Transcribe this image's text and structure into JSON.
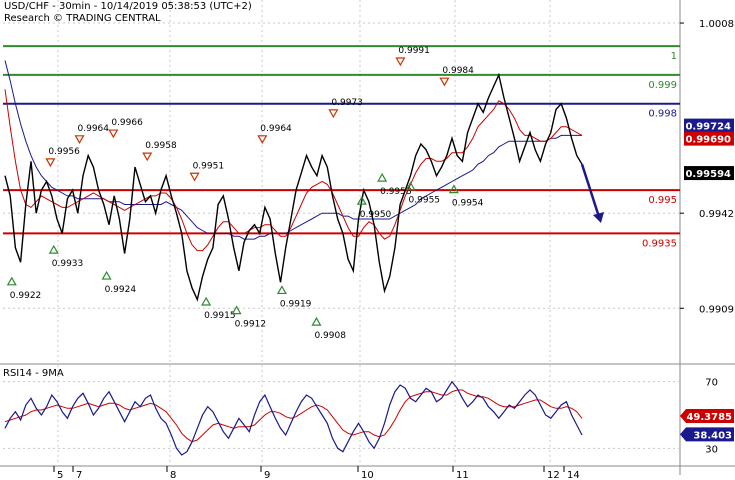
{
  "header": {
    "line1": "USD/CHF - 30min - 10/14/2019 05:38:53 (UTC+2)",
    "line2": "Research © TRADING CENTRAL"
  },
  "colors": {
    "background": "#ffffff",
    "price_line": "#000000",
    "ma_fast": "#cc0000",
    "ma_slow": "#1a1a8c",
    "level_green": "#2e8b2e",
    "level_blue": "#1a1a8c",
    "level_red": "#cc0000",
    "arrow": "#1a1a8c",
    "grid": "#c8c8c8",
    "up_marker": "#2e8b2e",
    "down_marker": "#cc3300"
  },
  "chart_data": [
    {
      "type": "line",
      "title": "USD/CHF - 30min",
      "x_tick_labels": [
        "5",
        "7",
        "8",
        "9",
        "10",
        "11",
        "12",
        "14"
      ],
      "y_tick_labels": [
        "1.0008",
        "0.9942",
        "0.9909"
      ],
      "ylim": [
        0.989,
        1.0016
      ],
      "grid": true,
      "price_path": [
        0.9955,
        0.9948,
        0.993,
        0.9925,
        0.9945,
        0.996,
        0.9942,
        0.995,
        0.9953,
        0.9948,
        0.994,
        0.9935,
        0.9947,
        0.995,
        0.9942,
        0.9955,
        0.9962,
        0.9958,
        0.995,
        0.9945,
        0.9938,
        0.9948,
        0.994,
        0.9928,
        0.994,
        0.9958,
        0.9952,
        0.9946,
        0.9948,
        0.9942,
        0.995,
        0.9955,
        0.9948,
        0.9942,
        0.9935,
        0.9922,
        0.9916,
        0.9912,
        0.992,
        0.9926,
        0.993,
        0.9945,
        0.9948,
        0.994,
        0.993,
        0.9922,
        0.9932,
        0.9936,
        0.9938,
        0.9935,
        0.9944,
        0.994,
        0.9928,
        0.9918,
        0.993,
        0.994,
        0.995,
        0.9956,
        0.9962,
        0.9958,
        0.9955,
        0.9962,
        0.9958,
        0.9948,
        0.994,
        0.9935,
        0.9926,
        0.9922,
        0.994,
        0.995,
        0.9946,
        0.9938,
        0.9925,
        0.9915,
        0.992,
        0.993,
        0.9945,
        0.995,
        0.9955,
        0.9962,
        0.9966,
        0.9964,
        0.996,
        0.9955,
        0.9958,
        0.9962,
        0.9968,
        0.9962,
        0.996,
        0.997,
        0.9975,
        0.998,
        0.9977,
        0.9982,
        0.9986,
        0.999,
        0.9982,
        0.9975,
        0.9968,
        0.996,
        0.9965,
        0.997,
        0.9964,
        0.996,
        0.9966,
        0.997,
        0.9978,
        0.998,
        0.9975,
        0.9968,
        0.9962,
        0.9959
      ],
      "ma_fast_path": [
        0.9985,
        0.9972,
        0.996,
        0.995,
        0.9945,
        0.9944,
        0.9946,
        0.9948,
        0.9947,
        0.9946,
        0.9945,
        0.9944,
        0.9944,
        0.9945,
        0.9946,
        0.9947,
        0.9948,
        0.9949,
        0.9948,
        0.9947,
        0.9946,
        0.9945,
        0.9944,
        0.9943,
        0.9944,
        0.9945,
        0.9946,
        0.9947,
        0.9948,
        0.9948,
        0.9949,
        0.9949,
        0.9947,
        0.9944,
        0.994,
        0.9935,
        0.9931,
        0.9929,
        0.9929,
        0.9931,
        0.9934,
        0.9937,
        0.9939,
        0.9939,
        0.9937,
        0.9935,
        0.9935,
        0.9936,
        0.9937,
        0.9937,
        0.9938,
        0.9938,
        0.9936,
        0.9934,
        0.9934,
        0.9937,
        0.9941,
        0.9945,
        0.9949,
        0.9951,
        0.9952,
        0.9953,
        0.9952,
        0.9949,
        0.9945,
        0.9941,
        0.9937,
        0.9934,
        0.9934,
        0.9937,
        0.9939,
        0.9938,
        0.9935,
        0.9933,
        0.9934,
        0.9938,
        0.9943,
        0.9948,
        0.9952,
        0.9956,
        0.9959,
        0.9961,
        0.9961,
        0.996,
        0.996,
        0.9961,
        0.9963,
        0.9963,
        0.9963,
        0.9965,
        0.9968,
        0.9972,
        0.9974,
        0.9976,
        0.9978,
        0.9981,
        0.998,
        0.9978,
        0.9975,
        0.9971,
        0.9969,
        0.9969,
        0.9968,
        0.9967,
        0.9967,
        0.9968,
        0.997,
        0.9972,
        0.9972,
        0.9971,
        0.997,
        0.9969
      ],
      "ma_slow_path": [
        0.9995,
        0.9988,
        0.998,
        0.9973,
        0.9967,
        0.9962,
        0.9958,
        0.9955,
        0.9953,
        0.9951,
        0.995,
        0.9949,
        0.9948,
        0.9948,
        0.9947,
        0.9947,
        0.9947,
        0.9947,
        0.9947,
        0.9947,
        0.9946,
        0.9946,
        0.9946,
        0.9945,
        0.9945,
        0.9945,
        0.9945,
        0.9945,
        0.9945,
        0.9945,
        0.9945,
        0.9946,
        0.9945,
        0.9944,
        0.9943,
        0.9941,
        0.9939,
        0.9937,
        0.9936,
        0.9935,
        0.9935,
        0.9935,
        0.9935,
        0.9935,
        0.9934,
        0.9934,
        0.9933,
        0.9933,
        0.9933,
        0.9934,
        0.9934,
        0.9935,
        0.9935,
        0.9935,
        0.9935,
        0.9936,
        0.9937,
        0.9938,
        0.9939,
        0.994,
        0.9941,
        0.9942,
        0.9942,
        0.9942,
        0.9942,
        0.9941,
        0.9941,
        0.994,
        0.994,
        0.994,
        0.994,
        0.994,
        0.994,
        0.994,
        0.994,
        0.9941,
        0.9942,
        0.9943,
        0.9944,
        0.9945,
        0.9947,
        0.9948,
        0.9949,
        0.995,
        0.9951,
        0.9952,
        0.9953,
        0.9954,
        0.9955,
        0.9956,
        0.9957,
        0.9959,
        0.996,
        0.9962,
        0.9963,
        0.9965,
        0.9966,
        0.9967,
        0.9967,
        0.9967,
        0.9967,
        0.9967,
        0.9967,
        0.9967,
        0.9967,
        0.9968,
        0.9968,
        0.9969,
        0.9969,
        0.9969,
        0.9969,
        0.9969
      ],
      "levels": [
        {
          "label": "1",
          "value": 1.0,
          "color": "#2e8b2e"
        },
        {
          "label": "0.999",
          "value": 0.999,
          "color": "#2e8b2e"
        },
        {
          "label": "0.998",
          "value": 0.998,
          "color": "#1a1a8c"
        },
        {
          "label": "0.995",
          "value": 0.995,
          "color": "#cc0000"
        },
        {
          "label": "0.9935",
          "value": 0.9935,
          "color": "#cc0000"
        }
      ],
      "price_boxes": [
        {
          "label": "0.99724",
          "value": 0.99724,
          "color": "#1a1a8c"
        },
        {
          "label": "0.99690",
          "value": 0.9969,
          "color": "#cc0000"
        },
        {
          "label": "0.99594",
          "value": 0.99594,
          "color": "#000000"
        }
      ],
      "swing_highs": [
        {
          "label": "0.9956",
          "x": 0.07,
          "value": 0.9956
        },
        {
          "label": "0.9964",
          "x": 0.113,
          "value": 0.9964
        },
        {
          "label": "0.9966",
          "x": 0.163,
          "value": 0.9966
        },
        {
          "label": "0.9958",
          "x": 0.213,
          "value": 0.9958
        },
        {
          "label": "0.9951",
          "x": 0.283,
          "value": 0.9951
        },
        {
          "label": "0.9964",
          "x": 0.383,
          "value": 0.9964
        },
        {
          "label": "0.9973",
          "x": 0.488,
          "value": 0.9973
        },
        {
          "label": "0.9991",
          "x": 0.587,
          "value": 0.9991
        },
        {
          "label": "0.9984",
          "x": 0.652,
          "value": 0.9984
        }
      ],
      "swing_lows": [
        {
          "label": "0.9922",
          "x": 0.013,
          "value": 0.9922
        },
        {
          "label": "0.9933",
          "x": 0.075,
          "value": 0.9933
        },
        {
          "label": "0.9924",
          "x": 0.153,
          "value": 0.9924
        },
        {
          "label": "0.9915",
          "x": 0.3,
          "value": 0.9915
        },
        {
          "label": "0.9912",
          "x": 0.345,
          "value": 0.9912
        },
        {
          "label": "0.9919",
          "x": 0.412,
          "value": 0.9919
        },
        {
          "label": "0.9908",
          "x": 0.463,
          "value": 0.9908
        },
        {
          "label": "0.9950",
          "x": 0.53,
          "value": 0.995
        },
        {
          "label": "0.9958",
          "x": 0.56,
          "value": 0.9958
        },
        {
          "label": "0.9955",
          "x": 0.602,
          "value": 0.9955
        },
        {
          "label": "0.9954",
          "x": 0.666,
          "value": 0.9954
        }
      ],
      "projection": {
        "from": 0.9959,
        "to": 0.994
      }
    },
    {
      "type": "line",
      "title": "RSI14 - 9MA",
      "ylim": [
        20,
        80
      ],
      "y_tick_labels": [
        "70",
        "30"
      ],
      "series": [
        {
          "values": [
            42,
            48,
            52,
            47,
            56,
            60,
            54,
            50,
            55,
            62,
            58,
            52,
            48,
            55,
            60,
            63,
            57,
            50,
            54,
            60,
            64,
            58,
            52,
            46,
            52,
            58,
            55,
            60,
            62,
            54,
            48,
            45,
            38,
            30,
            26,
            28,
            34,
            42,
            50,
            55,
            52,
            46,
            40,
            36,
            42,
            48,
            44,
            40,
            50,
            58,
            62,
            55,
            48,
            42,
            38,
            45,
            52,
            58,
            62,
            60,
            55,
            50,
            45,
            36,
            30,
            28,
            34,
            40,
            45,
            40,
            34,
            30,
            36,
            45,
            56,
            64,
            68,
            66,
            60,
            58,
            62,
            66,
            64,
            58,
            60,
            65,
            70,
            66,
            60,
            55,
            58,
            62,
            60,
            55,
            52,
            48,
            52,
            56,
            54,
            58,
            62,
            65,
            62,
            56,
            50,
            48,
            52,
            56,
            58,
            50,
            44,
            38
          ]
        },
        {
          "values": [
            46,
            47,
            48,
            49,
            50,
            52,
            53,
            53,
            54,
            55,
            56,
            55,
            54,
            54,
            55,
            56,
            57,
            56,
            55,
            56,
            57,
            57,
            56,
            54,
            53,
            54,
            55,
            56,
            57,
            56,
            54,
            52,
            48,
            44,
            39,
            36,
            34,
            35,
            38,
            41,
            44,
            45,
            44,
            43,
            42,
            43,
            43,
            43,
            44,
            47,
            50,
            52,
            52,
            51,
            49,
            48,
            49,
            51,
            53,
            55,
            56,
            55,
            53,
            49,
            45,
            41,
            39,
            38,
            39,
            40,
            40,
            38,
            37,
            38,
            42,
            47,
            53,
            58,
            61,
            62,
            63,
            64,
            64,
            63,
            62,
            62,
            64,
            65,
            65,
            63,
            62,
            61,
            61,
            60,
            58,
            56,
            55,
            55,
            55,
            56,
            57,
            58,
            59,
            59,
            57,
            55,
            54,
            54,
            55,
            54,
            52,
            48
          ]
        }
      ],
      "value_boxes": [
        {
          "label": "49.3785",
          "value": 49.3785,
          "color": "#cc0000"
        },
        {
          "label": "38.403",
          "value": 38.403,
          "color": "#1a1a8c"
        }
      ]
    }
  ]
}
